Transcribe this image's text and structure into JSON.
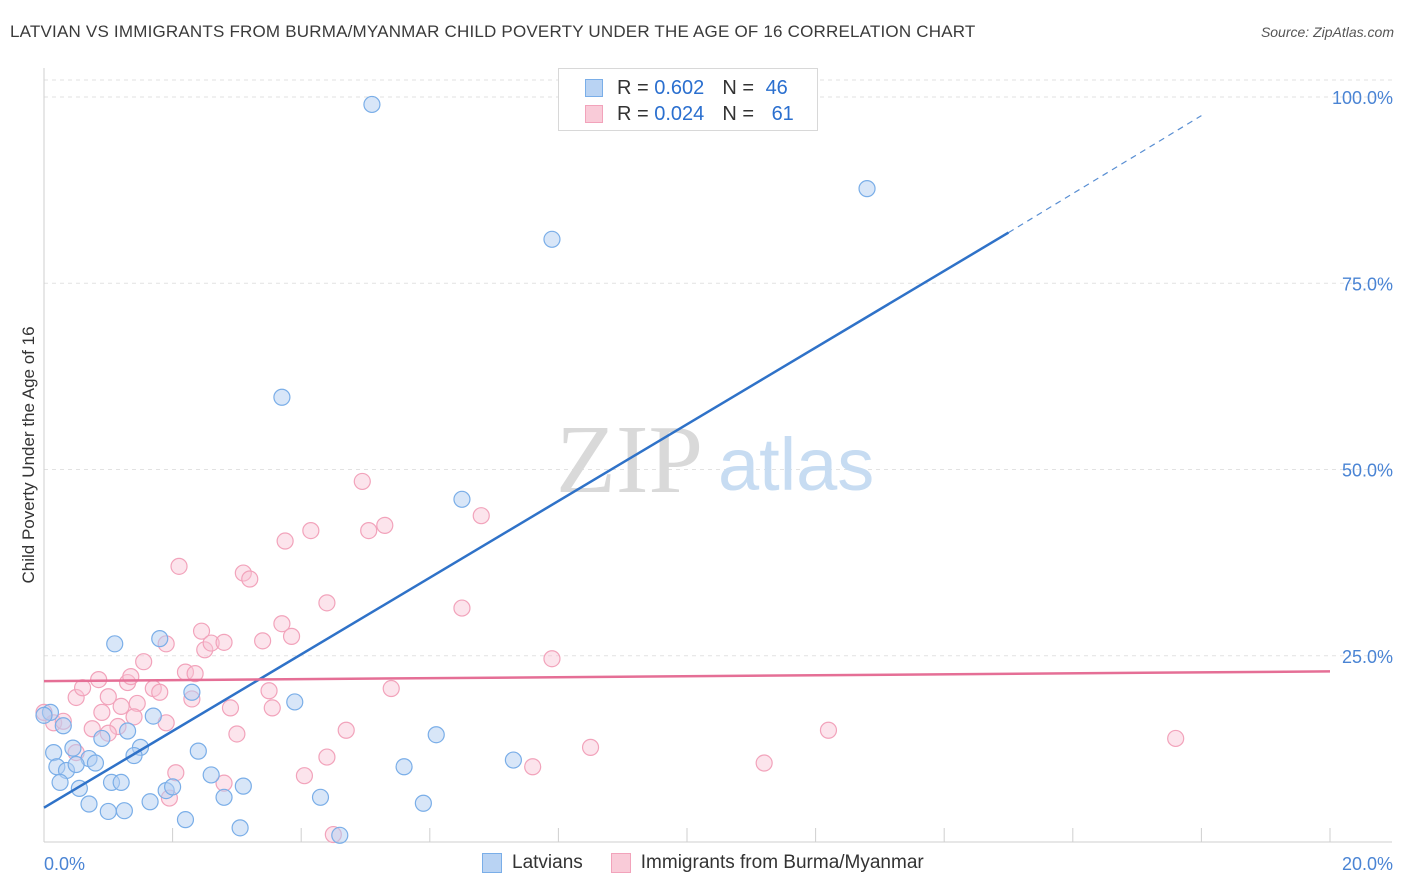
{
  "title": "LATVIAN VS IMMIGRANTS FROM BURMA/MYANMAR CHILD POVERTY UNDER THE AGE OF 16 CORRELATION CHART",
  "source": "Source: ZipAtlas.com",
  "watermark": {
    "zip": "ZIP",
    "atlas": "atlas"
  },
  "legend": {
    "r_label": "R =",
    "n_label": "N =",
    "rows": [
      {
        "r": "0.602",
        "n": "46"
      },
      {
        "r": "0.024",
        "n": "61"
      }
    ]
  },
  "chart_data": {
    "type": "scatter",
    "title": "LATVIAN VS IMMIGRANTS FROM BURMA/MYANMAR CHILD POVERTY UNDER THE AGE OF 16 CORRELATION CHART",
    "xlabel": "",
    "ylabel": "Child Poverty Under the Age of 16",
    "xlim": [
      0,
      20
    ],
    "ylim": [
      0,
      100
    ],
    "x_tick_labels": [
      "0.0%",
      "20.0%"
    ],
    "y_ticks": [
      25,
      50,
      75,
      100
    ],
    "y_tick_labels": [
      "25.0%",
      "50.0%",
      "75.0%",
      "100.0%"
    ],
    "grid": true,
    "legend_position": "bottom-center",
    "colors": {
      "Latvians": "#7aaee8",
      "Immigrants from Burma/Myanmar": "#f2a3bb",
      "blue_line": "#2f72c8",
      "pink_line": "#e56f96"
    },
    "series": [
      {
        "name": "Latvians",
        "r": 0.602,
        "n": 46,
        "trend": {
          "x0": 0,
          "y0": 4.6,
          "x1": 15,
          "y1": 81.8,
          "dash_to_x": 18.0,
          "dash_to_y": 97.5
        },
        "points": [
          [
            5.1,
            99.0
          ],
          [
            12.8,
            87.7
          ],
          [
            7.9,
            80.9
          ],
          [
            3.7,
            59.7
          ],
          [
            6.5,
            46.0
          ],
          [
            1.1,
            26.6
          ],
          [
            1.8,
            27.3
          ],
          [
            2.3,
            20.1
          ],
          [
            1.7,
            16.9
          ],
          [
            1.3,
            14.9
          ],
          [
            0.9,
            13.9
          ],
          [
            1.5,
            12.7
          ],
          [
            1.4,
            11.6
          ],
          [
            2.4,
            12.2
          ],
          [
            3.9,
            18.8
          ],
          [
            0.1,
            17.4
          ],
          [
            0.3,
            15.6
          ],
          [
            0.15,
            12.0
          ],
          [
            0.45,
            12.6
          ],
          [
            0.7,
            11.2
          ],
          [
            0.2,
            10.1
          ],
          [
            0.35,
            9.6
          ],
          [
            0.5,
            10.4
          ],
          [
            0.8,
            10.6
          ],
          [
            0.25,
            8.0
          ],
          [
            0.55,
            7.2
          ],
          [
            1.05,
            8.0
          ],
          [
            1.2,
            8.0
          ],
          [
            1.9,
            6.9
          ],
          [
            2.0,
            7.4
          ],
          [
            0.7,
            5.1
          ],
          [
            1.0,
            4.1
          ],
          [
            1.25,
            4.2
          ],
          [
            1.65,
            5.4
          ],
          [
            2.2,
            3.0
          ],
          [
            2.8,
            6.0
          ],
          [
            3.1,
            7.5
          ],
          [
            3.05,
            1.9
          ],
          [
            4.3,
            6.0
          ],
          [
            4.6,
            0.9
          ],
          [
            5.6,
            10.1
          ],
          [
            5.9,
            5.2
          ],
          [
            6.1,
            14.4
          ],
          [
            7.3,
            11.0
          ],
          [
            0.0,
            17.0
          ],
          [
            2.6,
            9.0
          ]
        ]
      },
      {
        "name": "Immigrants from Burma/Myanmar",
        "r": 0.024,
        "n": 61,
        "trend": {
          "x0": 0,
          "y0": 21.6,
          "x1": 20,
          "y1": 22.9
        },
        "points": [
          [
            0.0,
            17.4
          ],
          [
            0.15,
            16.0
          ],
          [
            0.3,
            16.2
          ],
          [
            0.5,
            19.4
          ],
          [
            0.6,
            20.7
          ],
          [
            0.85,
            21.8
          ],
          [
            0.9,
            17.4
          ],
          [
            1.0,
            19.5
          ],
          [
            1.15,
            15.5
          ],
          [
            1.2,
            18.2
          ],
          [
            1.3,
            21.4
          ],
          [
            1.35,
            22.2
          ],
          [
            1.45,
            18.6
          ],
          [
            1.55,
            24.2
          ],
          [
            1.7,
            20.6
          ],
          [
            1.8,
            20.1
          ],
          [
            1.9,
            16.0
          ],
          [
            1.9,
            26.6
          ],
          [
            2.1,
            37.0
          ],
          [
            2.2,
            22.8
          ],
          [
            2.35,
            22.6
          ],
          [
            2.3,
            19.2
          ],
          [
            2.45,
            28.3
          ],
          [
            2.5,
            25.8
          ],
          [
            2.6,
            26.7
          ],
          [
            2.8,
            26.8
          ],
          [
            2.9,
            18.0
          ],
          [
            3.0,
            14.5
          ],
          [
            3.1,
            36.1
          ],
          [
            3.2,
            35.3
          ],
          [
            3.4,
            27.0
          ],
          [
            3.5,
            20.3
          ],
          [
            3.55,
            18.0
          ],
          [
            3.7,
            29.3
          ],
          [
            3.75,
            40.4
          ],
          [
            3.85,
            27.6
          ],
          [
            4.05,
            8.9
          ],
          [
            4.15,
            41.8
          ],
          [
            4.4,
            11.4
          ],
          [
            4.4,
            32.1
          ],
          [
            4.5,
            1.0
          ],
          [
            4.7,
            15.0
          ],
          [
            4.95,
            48.4
          ],
          [
            5.05,
            41.8
          ],
          [
            5.3,
            42.5
          ],
          [
            5.4,
            20.6
          ],
          [
            6.5,
            31.4
          ],
          [
            6.8,
            43.8
          ],
          [
            7.6,
            10.1
          ],
          [
            7.9,
            24.6
          ],
          [
            8.5,
            12.7
          ],
          [
            11.2,
            10.6
          ],
          [
            12.2,
            15.0
          ],
          [
            17.6,
            13.9
          ],
          [
            0.5,
            12.0
          ],
          [
            0.75,
            15.2
          ],
          [
            1.0,
            14.6
          ],
          [
            1.95,
            5.9
          ],
          [
            2.05,
            9.3
          ],
          [
            2.8,
            7.9
          ],
          [
            1.4,
            16.8
          ]
        ]
      }
    ]
  },
  "bottom_legend": [
    "Latvians",
    "Immigrants from Burma/Myanmar"
  ]
}
